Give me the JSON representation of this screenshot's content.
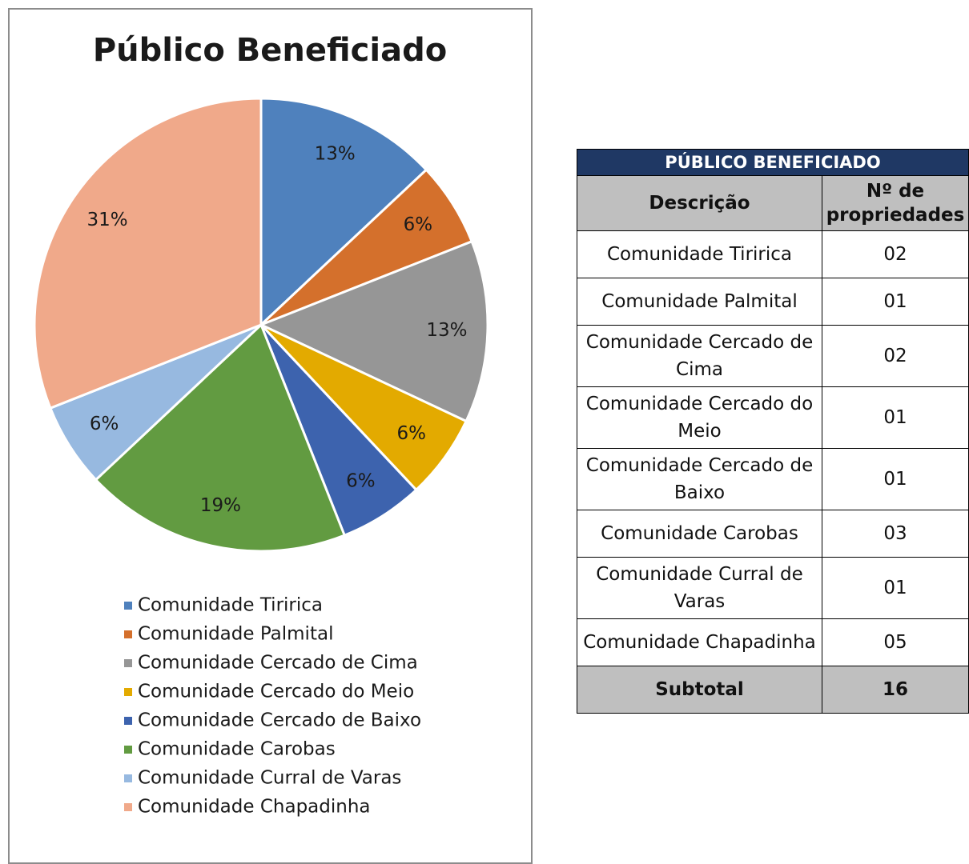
{
  "chart_data": {
    "type": "pie",
    "title": "Público Beneficiado",
    "categories": [
      "Comunidade Tiririca",
      "Comunidade Palmital",
      "Comunidade Cercado de Cima",
      "Comunidade Cercado do Meio",
      "Comunidade Cercado de Baixo",
      "Comunidade Carobas",
      "Comunidade Curral de Varas",
      "Comunidade Chapadinha"
    ],
    "values": [
      13,
      6,
      13,
      6,
      6,
      19,
      6,
      31
    ],
    "value_labels": [
      "13%",
      "6%",
      "13%",
      "6%",
      "6%",
      "19%",
      "6%",
      "31%"
    ],
    "colors": [
      "#4f81bd",
      "#d4702c",
      "#969696",
      "#e3aa00",
      "#3d63ae",
      "#629b41",
      "#97b9e0",
      "#f0a98a"
    ],
    "legend": "bottom"
  },
  "table": {
    "title": "PÚBLICO BENEFICIADO",
    "columns": [
      "Descrição",
      "Nº de propriedades"
    ],
    "rows": [
      [
        "Comunidade Tiririca",
        "02"
      ],
      [
        "Comunidade Palmital",
        "01"
      ],
      [
        "Comunidade Cercado de Cima",
        "02"
      ],
      [
        "Comunidade Cercado do Meio",
        "01"
      ],
      [
        "Comunidade Cercado de Baixo",
        "01"
      ],
      [
        "Comunidade Carobas",
        "03"
      ],
      [
        "Comunidade Curral de Varas",
        "01"
      ],
      [
        "Comunidade Chapadinha",
        "05"
      ]
    ],
    "footer": [
      "Subtotal",
      "16"
    ]
  }
}
